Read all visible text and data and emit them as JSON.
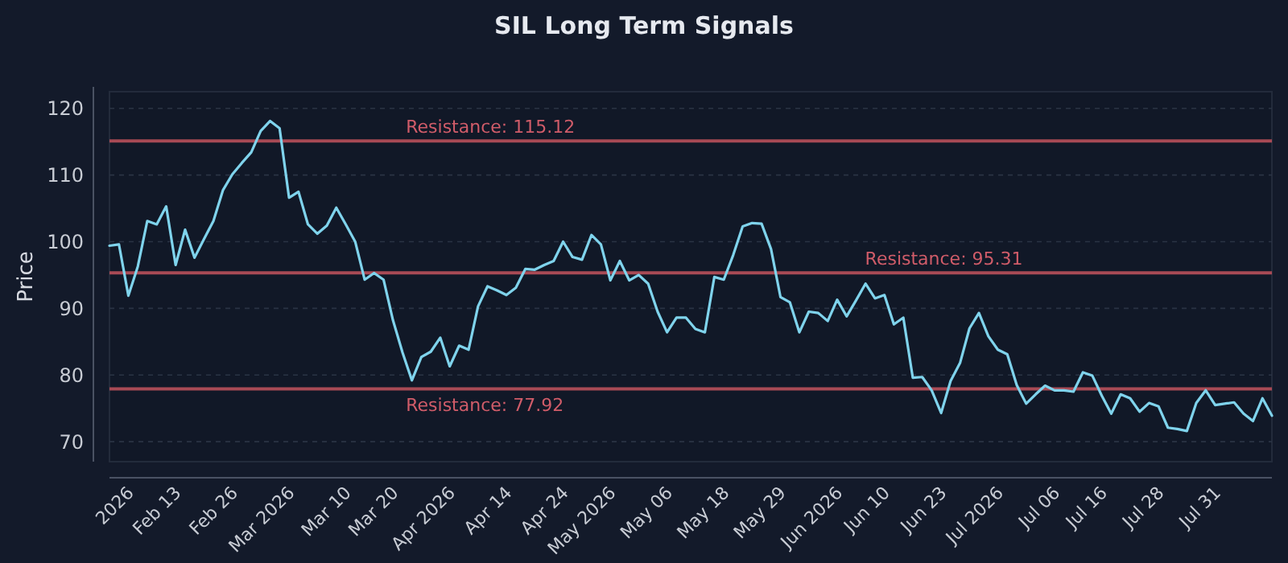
{
  "chart_data": {
    "type": "line",
    "title": "SIL Long Term Signals",
    "ylabel": "Price",
    "categories": [
      null,
      null,
      "2026",
      null,
      null,
      null,
      null,
      "Feb 13",
      null,
      null,
      null,
      null,
      null,
      "Feb 26",
      null,
      null,
      null,
      null,
      null,
      "Mar 2026",
      null,
      null,
      null,
      null,
      null,
      "Mar 10",
      null,
      null,
      null,
      null,
      "Mar 20",
      null,
      null,
      null,
      null,
      null,
      "Apr 2026",
      null,
      null,
      null,
      null,
      null,
      "Apr 14",
      null,
      null,
      null,
      null,
      null,
      "Apr 24",
      null,
      null,
      null,
      null,
      "May 2026",
      null,
      null,
      null,
      null,
      null,
      "May 06",
      null,
      null,
      null,
      null,
      null,
      "May 18",
      null,
      null,
      null,
      null,
      null,
      "May 29",
      null,
      null,
      null,
      null,
      null,
      "Jun 2026",
      null,
      null,
      null,
      null,
      "Jun 10",
      null,
      null,
      null,
      null,
      null,
      "Jun 23",
      null,
      null,
      null,
      null,
      null,
      "Jul 2026",
      null,
      null,
      null,
      null,
      null,
      "Jul 06",
      null,
      null,
      null,
      null,
      "Jul 16",
      null,
      null,
      null,
      null,
      null,
      "Jul 28",
      null,
      null,
      null,
      null,
      null,
      "Jul 31",
      null,
      null,
      null,
      null,
      null,
      null
    ],
    "series": [
      {
        "color": "#7fd3ec",
        "values": [
          99.4,
          99.6,
          91.9,
          96.3,
          103.1,
          102.6,
          105.3,
          96.5,
          101.8,
          97.6,
          100.4,
          103.1,
          107.7,
          110.1,
          111.8,
          113.4,
          116.6,
          118.1,
          117.0,
          106.6,
          107.5,
          102.6,
          101.2,
          102.4,
          105.1,
          102.6,
          100.0,
          94.3,
          95.3,
          94.3,
          88.2,
          83.4,
          79.2,
          82.7,
          83.5,
          85.6,
          81.3,
          84.4,
          83.8,
          90.3,
          93.3,
          92.7,
          92.0,
          93.1,
          95.9,
          95.8,
          96.5,
          97.1,
          100.0,
          97.7,
          97.3,
          101.0,
          99.6,
          94.2,
          97.1,
          94.2,
          95.0,
          93.7,
          89.5,
          86.4,
          88.6,
          88.6,
          86.9,
          86.4,
          94.7,
          94.3,
          98.0,
          102.3,
          102.8,
          102.7,
          98.9,
          91.7,
          90.9,
          86.4,
          89.5,
          89.3,
          88.1,
          91.3,
          88.8,
          91.2,
          93.7,
          91.5,
          92.0,
          87.6,
          88.6,
          79.6,
          79.7,
          77.7,
          74.3,
          79.1,
          81.8,
          87.0,
          89.3,
          85.8,
          83.8,
          83.1,
          78.5,
          75.7,
          77.1,
          78.4,
          77.7,
          77.7,
          77.5,
          80.4,
          79.9,
          76.9,
          74.2,
          77.1,
          76.5,
          74.5,
          75.8,
          75.3,
          72.1,
          71.9,
          71.6,
          75.8,
          77.7,
          75.5,
          75.7,
          75.9,
          74.2,
          73.1,
          76.5,
          73.9
        ]
      }
    ],
    "ylim": [
      67,
      122.5
    ],
    "yticks": [
      70,
      80,
      90,
      100,
      110,
      120
    ],
    "grid": "y",
    "line_style": "solid",
    "marker": "none",
    "ref_lines": [
      {
        "axis": "y",
        "value": 115.12,
        "label": "Resistance: 115.12",
        "color": "#a84a55"
      },
      {
        "axis": "y",
        "value": 95.31,
        "label": "Resistance: 95.31",
        "color": "#a84a55"
      },
      {
        "axis": "y",
        "value": 77.92,
        "label": "Resistance: 77.92",
        "color": "#a84a55"
      }
    ]
  }
}
